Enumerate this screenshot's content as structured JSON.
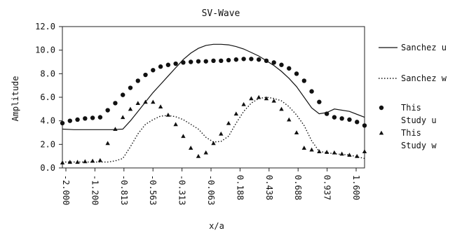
{
  "chart_data": {
    "type": "line",
    "title": "SV-Wave",
    "xlabel": "x/a",
    "ylabel": "Amplitude",
    "ylim": [
      0,
      12
    ],
    "xlim": [
      -2.0,
      2.0
    ],
    "y_ticks": [
      "0.0",
      "2.0",
      "4.0",
      "6.0",
      "8.0",
      "10.0",
      "12.0"
    ],
    "x_ticks": [
      "-2.000",
      "-1.200",
      "-0.813",
      "-0.563",
      "-0.313",
      "-0.063",
      "0.188",
      "0.438",
      "0.688",
      "0.937",
      "1.600"
    ],
    "grid": false,
    "legend_position": "right",
    "series": [
      {
        "name": "Sanchez u",
        "style": "solid-line",
        "color": "#111111",
        "x": [
          -2.0,
          -1.85,
          -1.7,
          -1.5,
          -1.35,
          -1.2,
          -1.1,
          -1.0,
          -0.9,
          -0.8,
          -0.7,
          -0.6,
          -0.5,
          -0.4,
          -0.3,
          -0.2,
          -0.1,
          0.0,
          0.1,
          0.2,
          0.3,
          0.4,
          0.5,
          0.6,
          0.7,
          0.8,
          0.9,
          1.0,
          1.1,
          1.2,
          1.3,
          1.4,
          1.5,
          1.6,
          1.8,
          2.0
        ],
        "y": [
          3.3,
          3.25,
          3.25,
          3.25,
          3.25,
          3.3,
          4.0,
          4.8,
          5.6,
          6.4,
          7.1,
          7.8,
          8.5,
          9.2,
          9.75,
          10.15,
          10.4,
          10.5,
          10.5,
          10.45,
          10.3,
          10.1,
          9.8,
          9.5,
          9.1,
          8.7,
          8.2,
          7.6,
          6.9,
          6.0,
          5.1,
          4.6,
          4.7,
          5.0,
          4.8,
          4.3
        ]
      },
      {
        "name": "Sanchez w",
        "style": "dotted-line",
        "color": "#111111",
        "x": [
          -2.0,
          -1.8,
          -1.6,
          -1.4,
          -1.3,
          -1.2,
          -1.1,
          -1.0,
          -0.9,
          -0.8,
          -0.7,
          -0.6,
          -0.5,
          -0.4,
          -0.3,
          -0.2,
          -0.1,
          0.0,
          0.1,
          0.2,
          0.3,
          0.4,
          0.5,
          0.6,
          0.7,
          0.8,
          0.9,
          1.0,
          1.1,
          1.2,
          1.3,
          1.4,
          1.5,
          1.6,
          1.8,
          2.0
        ],
        "y": [
          0.5,
          0.5,
          0.5,
          0.5,
          0.6,
          0.8,
          1.8,
          2.9,
          3.7,
          4.1,
          4.4,
          4.45,
          4.35,
          4.1,
          3.7,
          3.3,
          2.6,
          2.2,
          2.25,
          2.7,
          3.8,
          4.8,
          5.5,
          5.9,
          6.0,
          5.9,
          5.7,
          5.2,
          4.5,
          3.6,
          2.3,
          1.4,
          1.3,
          1.2,
          1.1,
          0.8
        ]
      },
      {
        "name": "This Study u",
        "style": "circles",
        "color": "#111111",
        "x": [
          -2.0,
          -1.9,
          -1.8,
          -1.7,
          -1.6,
          -1.5,
          -1.4,
          -1.3,
          -1.2,
          -1.1,
          -1.0,
          -0.9,
          -0.8,
          -0.7,
          -0.6,
          -0.5,
          -0.4,
          -0.3,
          -0.2,
          -0.1,
          0.0,
          0.1,
          0.2,
          0.3,
          0.4,
          0.5,
          0.6,
          0.7,
          0.8,
          0.9,
          1.0,
          1.1,
          1.2,
          1.3,
          1.4,
          1.5,
          1.6,
          1.7,
          1.8,
          1.9,
          2.0
        ],
        "y": [
          3.8,
          4.0,
          4.1,
          4.2,
          4.25,
          4.3,
          4.9,
          5.5,
          6.2,
          6.8,
          7.4,
          7.9,
          8.3,
          8.6,
          8.75,
          8.85,
          8.95,
          9.0,
          9.05,
          9.05,
          9.1,
          9.1,
          9.15,
          9.2,
          9.25,
          9.25,
          9.2,
          9.1,
          8.95,
          8.75,
          8.45,
          8.0,
          7.4,
          6.5,
          5.6,
          4.6,
          4.3,
          4.2,
          4.1,
          3.9,
          3.6
        ]
      },
      {
        "name": "This Study w",
        "style": "triangles",
        "color": "#111111",
        "x": [
          -2.0,
          -1.9,
          -1.8,
          -1.7,
          -1.6,
          -1.5,
          -1.4,
          -1.3,
          -1.2,
          -1.1,
          -1.0,
          -0.9,
          -0.8,
          -0.7,
          -0.6,
          -0.5,
          -0.4,
          -0.3,
          -0.2,
          -0.1,
          0.0,
          0.1,
          0.2,
          0.3,
          0.4,
          0.5,
          0.6,
          0.7,
          0.8,
          0.9,
          1.0,
          1.1,
          1.2,
          1.3,
          1.4,
          1.5,
          1.6,
          1.7,
          1.8,
          1.9,
          2.0
        ],
        "y": [
          0.45,
          0.5,
          0.5,
          0.55,
          0.6,
          0.65,
          2.1,
          3.3,
          4.3,
          5.0,
          5.5,
          5.6,
          5.6,
          5.2,
          4.5,
          3.7,
          2.7,
          1.7,
          1.0,
          1.3,
          2.1,
          2.9,
          3.8,
          4.6,
          5.4,
          5.9,
          6.0,
          5.9,
          5.7,
          5.0,
          4.1,
          3.0,
          1.7,
          1.55,
          1.4,
          1.35,
          1.3,
          1.2,
          1.1,
          1.0,
          1.4
        ]
      }
    ]
  }
}
